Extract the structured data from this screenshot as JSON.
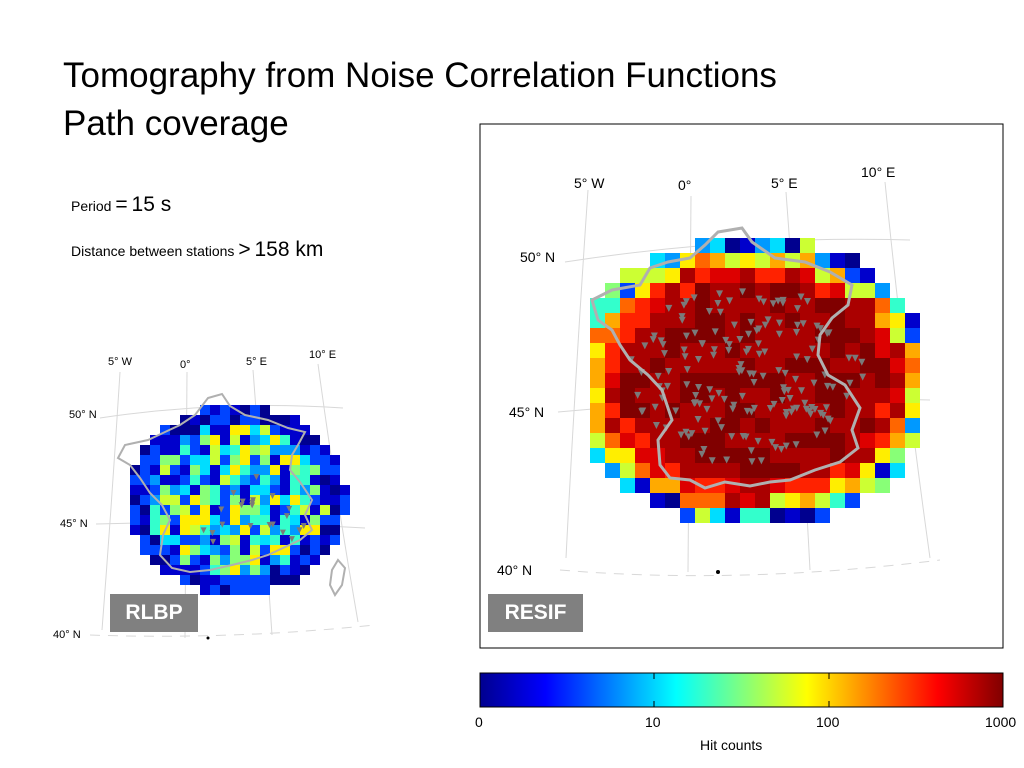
{
  "title": {
    "line1": "Tomography from Noise Correlation Functions",
    "line2": "Path coverage"
  },
  "params": {
    "period_label": "Period",
    "period_op": "=",
    "period_value": "15 s",
    "distance_label": "Distance between stations",
    "distance_op": ">",
    "distance_value": "158 km"
  },
  "left_map": {
    "badge": "RLBP",
    "lon_labels": [
      "5° W",
      "0°",
      "5° E",
      "10° E"
    ],
    "lat_labels": [
      "50° N",
      "45° N",
      "40° N"
    ]
  },
  "right_map": {
    "badge": "RESIF",
    "lon_labels": [
      "5° W",
      "0°",
      "5° E",
      "10° E"
    ],
    "lat_labels": [
      "50° N",
      "45° N",
      "40° N"
    ]
  },
  "colorbar": {
    "label": "Hit counts",
    "ticks": [
      "0",
      "10",
      "100",
      "1000"
    ],
    "scale": "log",
    "colormap": "jet"
  },
  "colors": {
    "badge_bg": "#808080",
    "coast": "#b0b0b0",
    "station": "#7a7a7a"
  }
}
